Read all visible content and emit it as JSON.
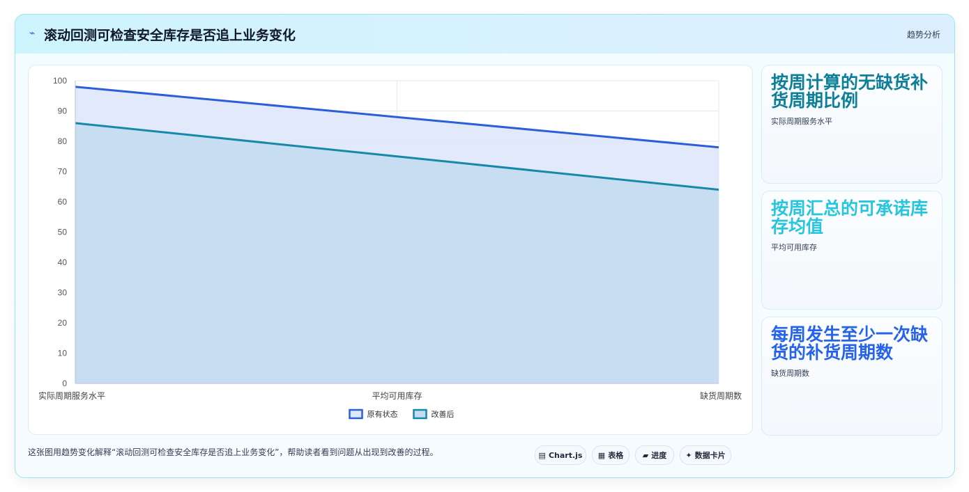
{
  "header": {
    "icon": "trend-line-icon",
    "title": "滚动回测可检查安全库存是否追上业务变化",
    "tag": "趋势分析"
  },
  "chart_data": {
    "type": "area",
    "categories": [
      "实际周期服务水平",
      "平均可用库存",
      "缺货周期数"
    ],
    "series": [
      {
        "name": "原有状态",
        "values": [
          98,
          88,
          78
        ],
        "color": "#2b5fd9",
        "fill": "#e0e8fb"
      },
      {
        "name": "改善后",
        "values": [
          86,
          75,
          64
        ],
        "color": "#1689a8",
        "fill": "#c5dcf1"
      }
    ],
    "ylim": [
      0,
      100
    ],
    "yticks": [
      "0",
      "10",
      "20",
      "30",
      "40",
      "50",
      "60",
      "70",
      "80",
      "90",
      "100"
    ],
    "grid": true,
    "legend_position": "bottom"
  },
  "side_cards": [
    {
      "title": "按周计算的无缺货补货周期比例",
      "subtitle": "实际周期服务水平",
      "color": "#0e7f99"
    },
    {
      "title": "按周汇总的可承诺库存均值",
      "subtitle": "平均可用库存",
      "color": "#28c6dc"
    },
    {
      "title": "每周发生至少一次缺货的补货周期数",
      "subtitle": "缺货周期数",
      "color": "#2563eb"
    }
  ],
  "footer": {
    "description": "这张图用趋势变化解释“滚动回测可检查安全库存是否追上业务变化”，帮助读者看到问题从出现到改善的过程。",
    "chips": [
      {
        "icon": "▤",
        "label": "Chart.js"
      },
      {
        "icon": "▦",
        "label": "表格"
      },
      {
        "icon": "▰",
        "label": "进度"
      },
      {
        "icon": "✦",
        "label": "数据卡片"
      }
    ]
  }
}
